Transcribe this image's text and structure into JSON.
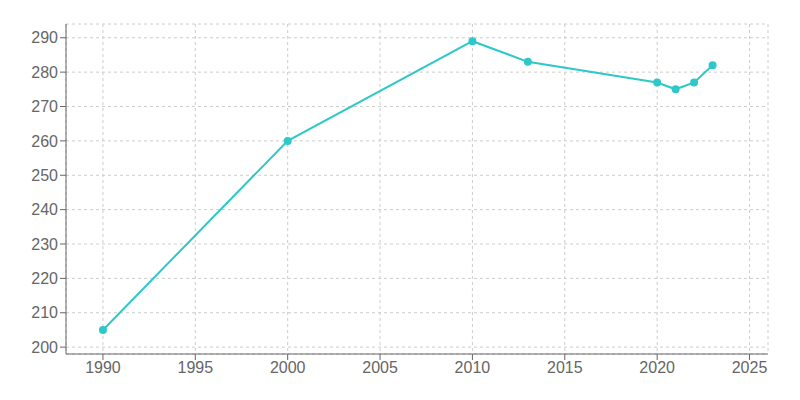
{
  "chart_data": {
    "type": "line",
    "x": [
      1990,
      2000,
      2010,
      2013,
      2020,
      2021,
      2022,
      2023
    ],
    "values": [
      205,
      260,
      289,
      283,
      277,
      275,
      277,
      282
    ],
    "color": "#2ec8c8",
    "marker": "circle",
    "xlim": [
      1988,
      2026
    ],
    "ylim": [
      198,
      294
    ],
    "xticks": [
      1990,
      1995,
      2000,
      2005,
      2010,
      2015,
      2020,
      2025
    ],
    "yticks": [
      200,
      210,
      220,
      230,
      240,
      250,
      260,
      270,
      280,
      290
    ],
    "grid": true
  }
}
